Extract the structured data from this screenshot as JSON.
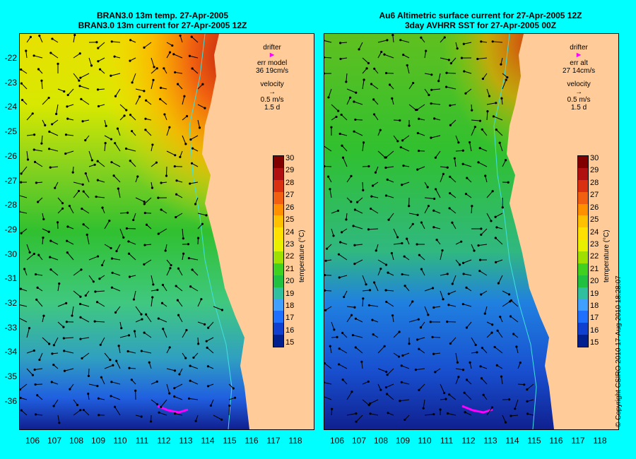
{
  "left": {
    "title_line1": "BRAN3.0 13m temp. 27-Apr-2005",
    "title_line2": "BRAN3.0 13m current for 27-Apr-2005 12Z",
    "drifter_label": "drifter",
    "err_label": "err model",
    "err_value": "36 19cm/s",
    "velocity_label": "velocity",
    "velocity_scale": "0.5 m/s",
    "velocity_days": "1.5 d"
  },
  "right": {
    "title_line1": "Au6 Altimetric surface current for 27-Apr-2005 12Z",
    "title_line2": "3day AVHRR SST for 27-Apr-2005 00Z",
    "drifter_label": "drifter",
    "err_label": "err alt",
    "err_value": "27 14cm/s",
    "velocity_label": "velocity",
    "velocity_scale": "0.5 m/s",
    "velocity_days": "1.5 d"
  },
  "axes": {
    "lat_labels": [
      "-22",
      "-23",
      "-24",
      "-25",
      "-26",
      "-27",
      "-28",
      "-29",
      "-30",
      "-31",
      "-32",
      "-33",
      "-34",
      "-35",
      "-36"
    ],
    "lon_labels": [
      "106",
      "107",
      "108",
      "109",
      "110",
      "111",
      "112",
      "113",
      "114",
      "115",
      "116",
      "117",
      "118"
    ]
  },
  "colorbar": {
    "title": "temperature (°C)",
    "ticks": [
      "30",
      "29",
      "28",
      "27",
      "26",
      "25",
      "24",
      "23",
      "22",
      "21",
      "20",
      "19",
      "18",
      "17",
      "16",
      "15"
    ],
    "colors": [
      "#800000",
      "#b01010",
      "#d83010",
      "#f06010",
      "#ff9000",
      "#ffc000",
      "#ffe000",
      "#e8f000",
      "#a0e000",
      "#40d020",
      "#20c040",
      "#30c0a0",
      "#40a0ff",
      "#2070ff",
      "#1040d0",
      "#002090"
    ]
  },
  "colors": {
    "background": "#00ffff",
    "land": "#ffcc99",
    "drifter": "#ff00ff"
  },
  "copyright": "© Copyright CSIRO 2010   17-Aug-2010 18:28:07"
}
